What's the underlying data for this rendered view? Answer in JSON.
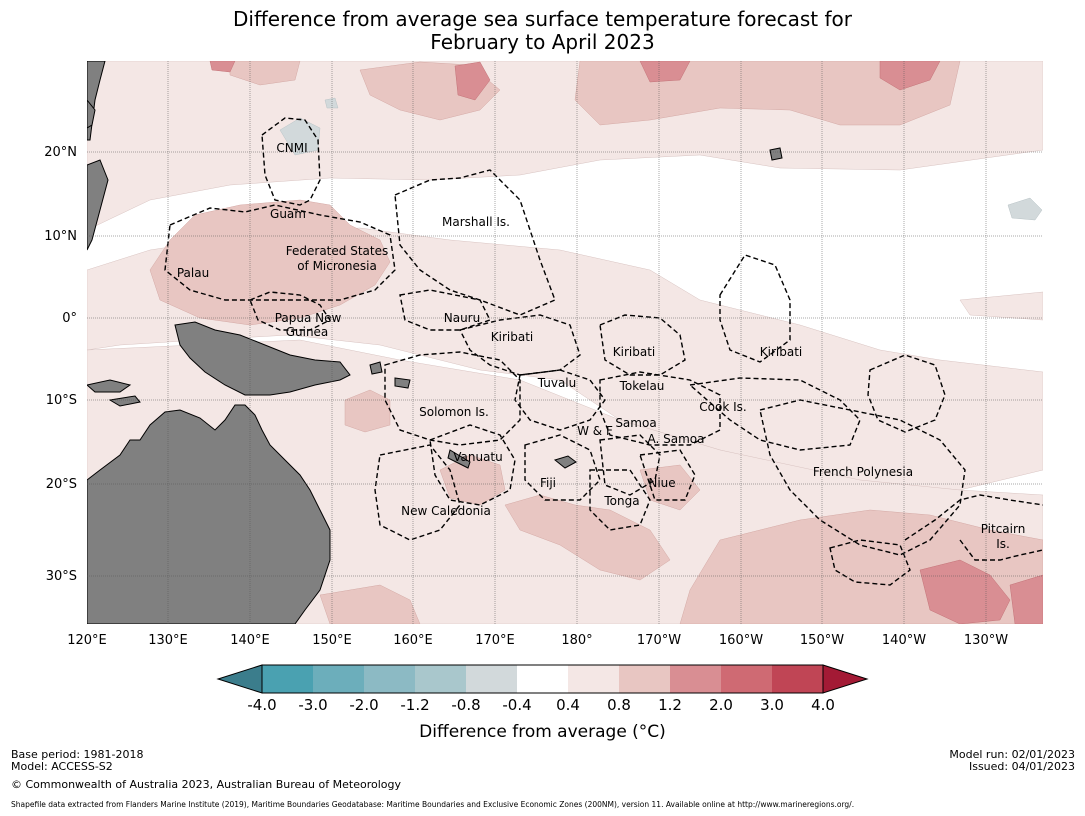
{
  "title": {
    "line1": "Difference from average sea surface temperature forecast for",
    "line2": "February to April 2023"
  },
  "axes": {
    "longitude_ticks": [
      "120°E",
      "130°E",
      "140°E",
      "150°E",
      "160°E",
      "170°E",
      "180°",
      "170°W",
      "160°W",
      "150°W",
      "140°W",
      "130°W"
    ],
    "latitude_ticks": [
      "20°N",
      "10°N",
      "0°",
      "10°S",
      "20°S",
      "30°S"
    ]
  },
  "regions": [
    {
      "name": "CNMI"
    },
    {
      "name": "Guam"
    },
    {
      "name": "Marshall Is."
    },
    {
      "name": "Federated States"
    },
    {
      "name": "of Micronesia"
    },
    {
      "name": "Palau"
    },
    {
      "name": "Papua New"
    },
    {
      "name": "Guinea"
    },
    {
      "name": "Nauru"
    },
    {
      "name": "Kiribati"
    },
    {
      "name": "Kiribati"
    },
    {
      "name": "Kiribati"
    },
    {
      "name": "Tuvalu"
    },
    {
      "name": "Tokelau"
    },
    {
      "name": "Solomon Is."
    },
    {
      "name": "Cook Is."
    },
    {
      "name": "Samoa"
    },
    {
      "name": "W & F"
    },
    {
      "name": "A. Samoa"
    },
    {
      "name": "Vanuatu"
    },
    {
      "name": "Fiji"
    },
    {
      "name": "Niue"
    },
    {
      "name": "French Polynesia"
    },
    {
      "name": "Tonga"
    },
    {
      "name": "New Caledonia"
    },
    {
      "name": "Pitcairn"
    },
    {
      "name": "Is."
    }
  ],
  "colorbar": {
    "ticks": [
      "-4.0",
      "-3.0",
      "-2.0",
      "-1.2",
      "-0.8",
      "-0.4",
      "0.4",
      "0.8",
      "1.2",
      "2.0",
      "3.0",
      "4.0"
    ],
    "colors": [
      "#3b7d8c",
      "#4aa1b1",
      "#6caebb",
      "#8cbac4",
      "#a9c7cc",
      "#d2d9db",
      "#ffffff",
      "#f4e7e5",
      "#e8c6c2",
      "#d98e93",
      "#cf6a73",
      "#c04555",
      "#a31a35"
    ],
    "title": "Difference from average (°C)"
  },
  "colors": {
    "land": "#808080",
    "warm1": "#f4e7e5",
    "warm2": "#e8c6c2",
    "warm3": "#d98e93",
    "warm4": "#cf6a73",
    "cool1": "#d2d9db"
  },
  "metadata": {
    "base_period": "Base period: 1981-2018",
    "model": "Model: ACCESS-S2",
    "model_run": "Model run: 02/01/2023",
    "issued": "Issued: 04/01/2023",
    "copyright": "© Commonwealth of Australia 2023, Australian Bureau of Meteorology",
    "shapefile_note": "Shapefile data extracted from Flanders Marine Institute (2019), Maritime Boundaries Geodatabase: Maritime Boundaries and Exclusive Economic Zones (200NM), version 11. Available online at http://www.marineregions.org/."
  }
}
